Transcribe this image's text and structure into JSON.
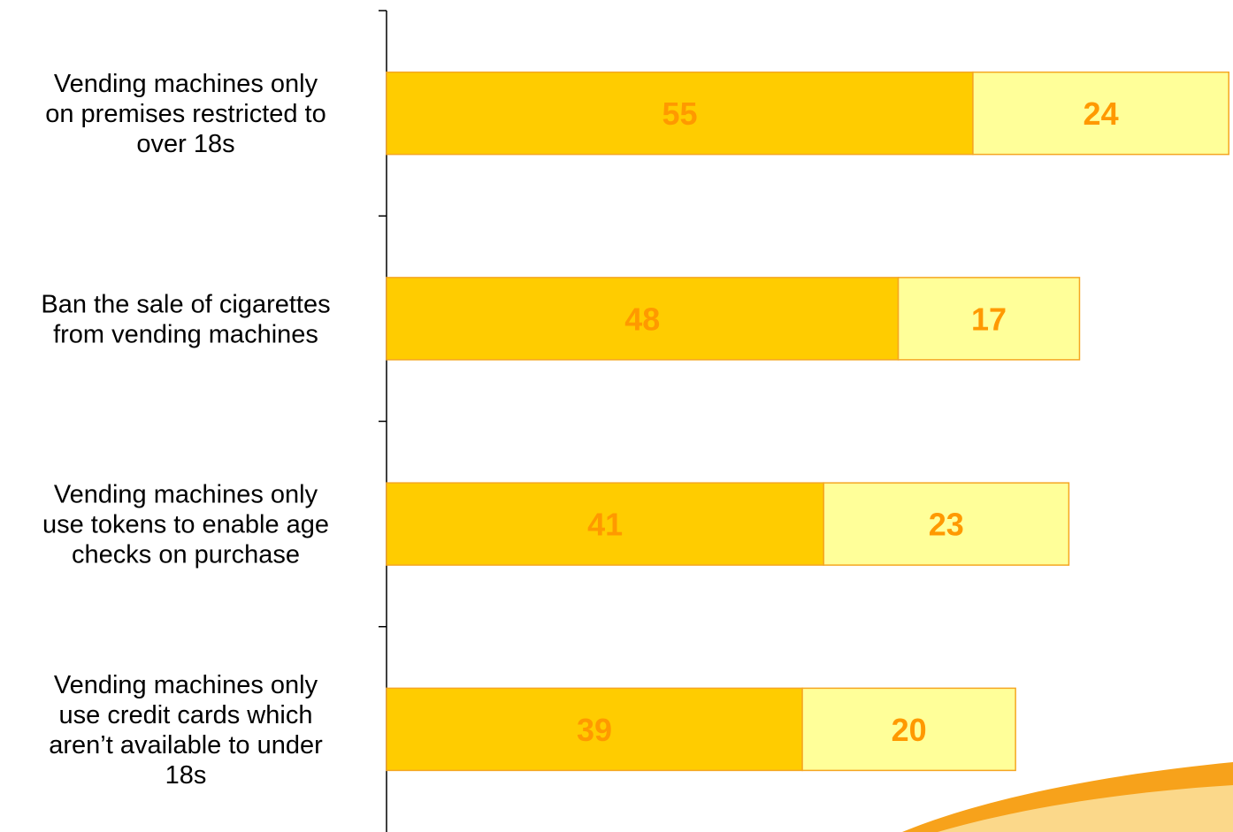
{
  "chart_data": {
    "type": "bar",
    "orientation": "horizontal",
    "stacked": true,
    "categories": [
      "Vending machines only on premises restricted to over 18s",
      "Ban the sale of cigarettes from vending machines",
      "Vending machines only use tokens to enable age checks on purchase",
      "Vending machines only use credit cards which aren’t available to under 18s"
    ],
    "category_lines": [
      [
        "Vending machines only",
        "on premises restricted to",
        "over 18s"
      ],
      [
        "Ban the sale of cigarettes",
        "from vending machines"
      ],
      [
        "Vending machines only",
        "use tokens to enable age",
        "checks on purchase"
      ],
      [
        "Vending machines only",
        "use credit cards which",
        "aren’t available to under",
        "18s"
      ]
    ],
    "series": [
      {
        "values": [
          55,
          48,
          41,
          39
        ],
        "color": "#ffcc00"
      },
      {
        "values": [
          24,
          17,
          23,
          20
        ],
        "color": "#ffff99"
      }
    ],
    "bar_border_color": "#f5a623",
    "value_label_color": "#ff9900",
    "title": "",
    "xlabel": "",
    "ylabel": "",
    "xlim": [
      0,
      79
    ],
    "grid": false,
    "legend": "none"
  }
}
